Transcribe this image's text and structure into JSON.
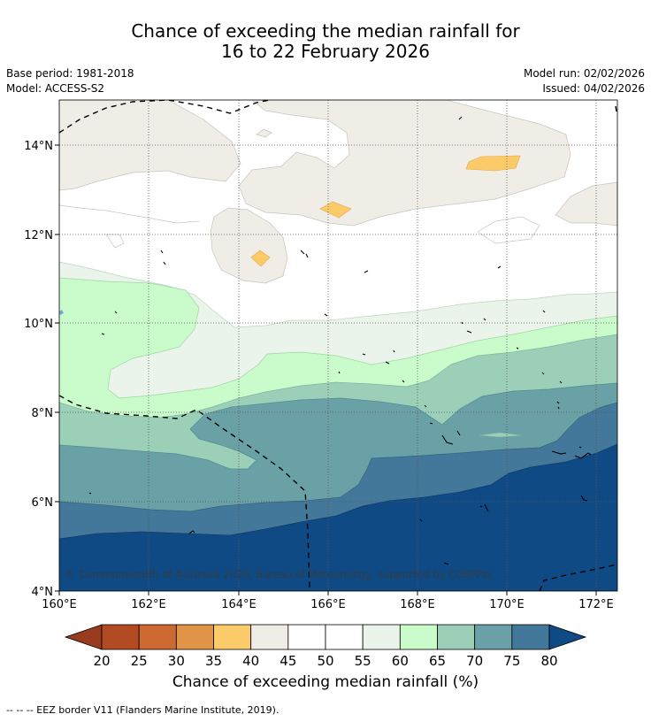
{
  "title": {
    "line1": "Chance of exceeding the median rainfall for",
    "line2": "16 to 22 February 2026"
  },
  "meta": {
    "base_period": "Base period: 1981-2018",
    "model": "Model: ACCESS-S2",
    "model_run": "Model run: 02/02/2026",
    "issued": "Issued: 04/02/2026"
  },
  "map": {
    "lat_labels": [
      "14°N",
      "12°N",
      "10°N",
      "8°N",
      "6°N",
      "4°N"
    ],
    "lon_labels": [
      "160°E",
      "162°E",
      "164°E",
      "166°E",
      "168°E",
      "170°E",
      "172°E"
    ],
    "copyright": "© Commonwealth of Australia 2026, Bureau of Meteorology, supported by COSPPac"
  },
  "colorbar": {
    "ticks": [
      "20",
      "25",
      "30",
      "35",
      "40",
      "45",
      "50",
      "55",
      "60",
      "65",
      "70",
      "75",
      "80"
    ],
    "under_color": "#973c1f",
    "over_color": "#104a85",
    "colors": [
      "#b24a24",
      "#cd6932",
      "#e09447",
      "#fbcb6a",
      "#f0ece6",
      "#ffffff",
      "#ffffff",
      "#eaf4ea",
      "#c9fbcb",
      "#9bcfb8",
      "#6aa1a6",
      "#44789a"
    ],
    "label": "Chance of exceeding median rainfall (%)"
  },
  "footnote": "--  --  -- EEZ border V11 (Flanders Marine Institute, 2019)."
}
